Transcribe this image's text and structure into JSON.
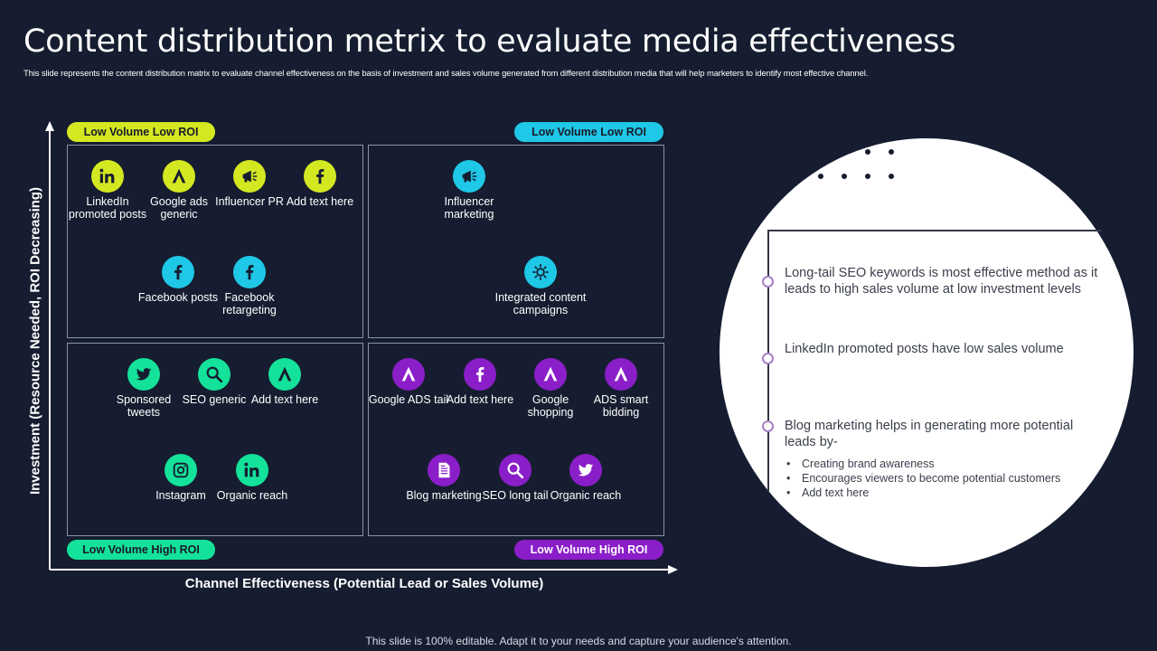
{
  "header": {
    "title": "Content distribution metrix to evaluate media effectiveness",
    "subtitle": "This slide represents the content distribution matrix to evaluate channel effectiveness on the basis of investment and sales volume generated from different distribution media that will help marketers to identify most effective channel."
  },
  "axes": {
    "y_label": "Investment (Resource Needed, ROI Decreasing)",
    "x_label": "Channel Effectiveness (Potential Lead or Sales Volume)"
  },
  "colors": {
    "background": "#161d30",
    "lime": "#d4e821",
    "cyan": "#1ec8e6",
    "green": "#14e29a",
    "purple": "#8a1ec8"
  },
  "quadrants": {
    "top_left": {
      "tag": "Low Volume Low ROI",
      "items": [
        {
          "label": "LinkedIn promoted posts",
          "icon": "linkedin-icon"
        },
        {
          "label": "Google ads generic",
          "icon": "google-ads-icon"
        },
        {
          "label": "Influencer PR",
          "icon": "megaphone-icon"
        },
        {
          "label": "Add text here",
          "icon": "facebook-icon"
        },
        {
          "label": "Facebook posts",
          "icon": "facebook-icon"
        },
        {
          "label": "Facebook retargeting",
          "icon": "facebook-icon"
        }
      ]
    },
    "top_right": {
      "tag": "Low Volume Low ROI",
      "items": [
        {
          "label": "Influencer marketing",
          "icon": "megaphone-icon"
        },
        {
          "label": "Integrated content campaigns",
          "icon": "gear-icon"
        }
      ]
    },
    "bottom_left": {
      "tag": "Low Volume High ROI",
      "items": [
        {
          "label": "Sponsored tweets",
          "icon": "twitter-icon"
        },
        {
          "label": "SEO generic",
          "icon": "search-icon"
        },
        {
          "label": "Add text here",
          "icon": "google-ads-icon"
        },
        {
          "label": "Instagram",
          "icon": "instagram-icon"
        },
        {
          "label": "Organic reach",
          "icon": "linkedin-icon"
        }
      ]
    },
    "bottom_right": {
      "tag": "Low Volume High ROI",
      "items": [
        {
          "label": "Google ADS tail",
          "icon": "google-ads-icon"
        },
        {
          "label": "Add text here",
          "icon": "facebook-icon"
        },
        {
          "label": "Google shopping",
          "icon": "google-ads-icon"
        },
        {
          "label": "ADS smart bidding",
          "icon": "google-ads-icon"
        },
        {
          "label": "Blog marketing",
          "icon": "document-icon"
        },
        {
          "label": "SEO long tail",
          "icon": "search-icon"
        },
        {
          "label": "Organic reach",
          "icon": "twitter-icon"
        }
      ]
    }
  },
  "insights": {
    "points": [
      "Long-tail SEO keywords is most effective method as it leads to high sales volume at low investment levels",
      "LinkedIn promoted posts have low sales volume",
      "Blog marketing helps in generating more potential leads by-"
    ],
    "sub_points": [
      "Creating brand awareness",
      "Encourages viewers to become potential customers",
      "Add text here"
    ]
  },
  "footer": "This slide is 100% editable. Adapt it to your needs and capture your audience's attention."
}
